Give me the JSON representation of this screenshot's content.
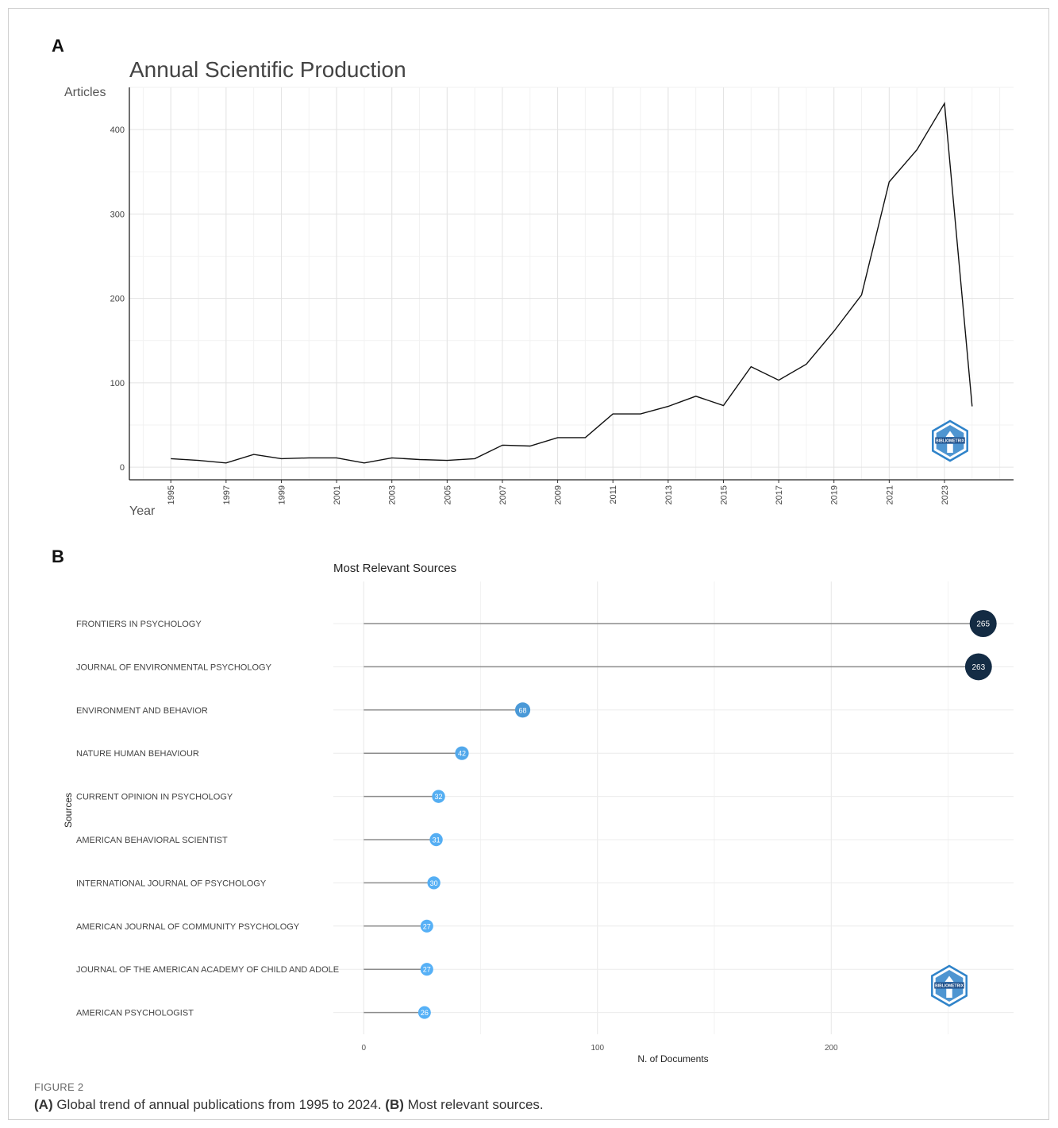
{
  "panels": {
    "a_label": "A",
    "b_label": "B"
  },
  "chart_data": [
    {
      "type": "line",
      "title": "Annual Scientific Production",
      "xlabel": "Year",
      "ylabel": "Articles",
      "x": [
        1995,
        1996,
        1997,
        1998,
        1999,
        2000,
        2001,
        2002,
        2003,
        2004,
        2005,
        2006,
        2007,
        2008,
        2009,
        2010,
        2011,
        2012,
        2013,
        2014,
        2015,
        2016,
        2017,
        2018,
        2019,
        2020,
        2021,
        2022,
        2023,
        2024
      ],
      "values": [
        10,
        8,
        5,
        15,
        10,
        11,
        11,
        5,
        11,
        9,
        8,
        10,
        26,
        25,
        35,
        35,
        63,
        63,
        72,
        84,
        73,
        119,
        103,
        122,
        161,
        204,
        338,
        376,
        431,
        72
      ],
      "xticks": [
        "1995",
        "1997",
        "1999",
        "2001",
        "2003",
        "2005",
        "2007",
        "2009",
        "2011",
        "2013",
        "2015",
        "2017",
        "2019",
        "2021",
        "2023"
      ],
      "yticks": [
        "0",
        "100",
        "200",
        "300",
        "400"
      ],
      "xlim": [
        1993.5,
        2025.5
      ],
      "ylim": [
        -15,
        450
      ],
      "grid": true,
      "line_color": "#111111"
    },
    {
      "type": "bar",
      "style": "lollipop",
      "title": "Most Relevant Sources",
      "xlabel": "N. of Documents",
      "ylabel": "Sources",
      "categories": [
        "FRONTIERS IN PSYCHOLOGY",
        "JOURNAL OF ENVIRONMENTAL PSYCHOLOGY",
        "ENVIRONMENT AND BEHAVIOR",
        "NATURE HUMAN BEHAVIOUR",
        "CURRENT OPINION IN PSYCHOLOGY",
        "AMERICAN BEHAVIORAL SCIENTIST",
        "INTERNATIONAL JOURNAL OF PSYCHOLOGY",
        "AMERICAN JOURNAL OF COMMUNITY PSYCHOLOGY",
        "JOURNAL OF THE AMERICAN ACADEMY OF CHILD AND ADOLE",
        "AMERICAN PSYCHOLOGIST"
      ],
      "values": [
        265,
        263,
        68,
        42,
        32,
        31,
        30,
        27,
        27,
        26
      ],
      "value_labels": [
        "265",
        "263",
        "68",
        "42",
        "32",
        "31",
        "30",
        "27",
        "27",
        "26"
      ],
      "xticks": [
        "0",
        "100",
        "200"
      ],
      "xlim": [
        -13,
        278
      ],
      "grid": true,
      "color_low": "#56b1f7",
      "color_high": "#132b43"
    }
  ],
  "caption": {
    "head": "FIGURE 2",
    "a_tag": "(A)",
    "a_text": " Global trend of annual publications from 1995 to 2024. ",
    "b_tag": "(B)",
    "b_text": " Most relevant sources."
  },
  "logo": {
    "text": "BIBLIOMETRIX",
    "color": "#2f83c9"
  }
}
